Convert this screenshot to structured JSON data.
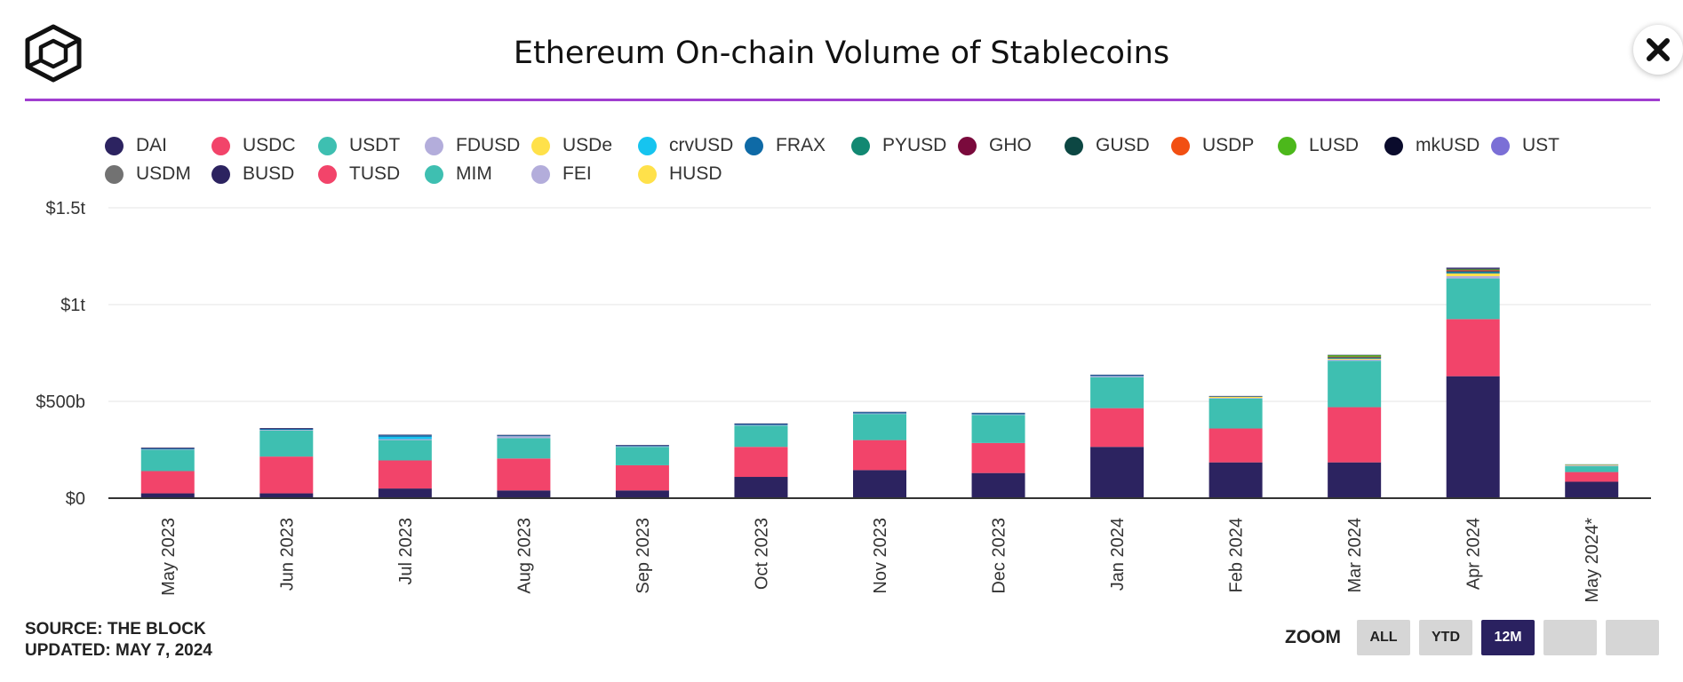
{
  "title": "Ethereum On-chain Volume of Stablecoins",
  "legend": [
    {
      "name": "DAI",
      "color": "#2c2360"
    },
    {
      "name": "USDC",
      "color": "#f2446a"
    },
    {
      "name": "USDT",
      "color": "#3ebfb1"
    },
    {
      "name": "FDUSD",
      "color": "#b3addb"
    },
    {
      "name": "USDe",
      "color": "#ffe14a"
    },
    {
      "name": "crvUSD",
      "color": "#16c4ef"
    },
    {
      "name": "FRAX",
      "color": "#0e6aa6"
    },
    {
      "name": "PYUSD",
      "color": "#128872"
    },
    {
      "name": "GHO",
      "color": "#7a0a3c"
    },
    {
      "name": "GUSD",
      "color": "#0c4743"
    },
    {
      "name": "USDP",
      "color": "#f24f12"
    },
    {
      "name": "LUSD",
      "color": "#4cb81b"
    },
    {
      "name": "mkUSD",
      "color": "#0a0b2c"
    },
    {
      "name": "UST",
      "color": "#7b6fd6"
    },
    {
      "name": "USDM",
      "color": "#727272"
    },
    {
      "name": "BUSD",
      "color": "#2c2360"
    },
    {
      "name": "TUSD",
      "color": "#f2446a"
    },
    {
      "name": "MIM",
      "color": "#3ebfb1"
    },
    {
      "name": "FEI",
      "color": "#b3addb"
    },
    {
      "name": "HUSD",
      "color": "#ffe14a"
    }
  ],
  "chart_data": {
    "type": "bar",
    "stacked": true,
    "categories": [
      "May 2023",
      "Jun 2023",
      "Jul 2023",
      "Aug 2023",
      "Sep 2023",
      "Oct 2023",
      "Nov 2023",
      "Dec 2023",
      "Jan 2024",
      "Feb 2024",
      "Mar 2024",
      "Apr 2024",
      "May 2024*"
    ],
    "y_ticks": [
      "$0",
      "$500b",
      "$1t",
      "$1.5t"
    ],
    "ylim": [
      0,
      1500
    ],
    "grid": true,
    "legend_position": "top",
    "series": [
      {
        "name": "DAI",
        "color": "#2c2360",
        "values": [
          25,
          25,
          50,
          40,
          40,
          110,
          145,
          130,
          265,
          185,
          185,
          630,
          85
        ]
      },
      {
        "name": "USDC",
        "color": "#f2446a",
        "values": [
          115,
          190,
          145,
          165,
          130,
          155,
          155,
          155,
          200,
          175,
          285,
          295,
          50
        ]
      },
      {
        "name": "USDT",
        "color": "#3ebfb1",
        "values": [
          110,
          135,
          105,
          105,
          95,
          110,
          135,
          145,
          160,
          155,
          240,
          210,
          30
        ]
      },
      {
        "name": "FDUSD",
        "color": "#b3addb",
        "values": [
          3,
          3,
          5,
          10,
          3,
          3,
          3,
          3,
          6,
          3,
          6,
          12,
          4
        ]
      },
      {
        "name": "USDe",
        "color": "#ffe14a",
        "values": [
          0,
          0,
          0,
          0,
          0,
          0,
          0,
          0,
          0,
          6,
          4,
          14,
          5
        ]
      },
      {
        "name": "crvUSD",
        "color": "#16c4ef",
        "values": [
          0,
          0,
          12,
          0,
          0,
          0,
          0,
          0,
          0,
          0,
          0,
          0,
          0
        ]
      },
      {
        "name": "FRAX",
        "color": "#0e6aa6",
        "values": [
          4,
          5,
          8,
          4,
          4,
          5,
          6,
          6,
          5,
          3,
          3,
          6,
          1
        ]
      },
      {
        "name": "PYUSD",
        "color": "#128872",
        "values": [
          0,
          0,
          0,
          0,
          0,
          0,
          0,
          0,
          0,
          0,
          3,
          3,
          0
        ]
      },
      {
        "name": "GHO",
        "color": "#7a0a3c",
        "values": [
          0,
          0,
          0,
          0,
          0,
          0,
          0,
          0,
          0,
          0,
          2,
          3,
          0
        ]
      },
      {
        "name": "GUSD",
        "color": "#0c4743",
        "values": [
          0,
          0,
          0,
          0,
          0,
          0,
          0,
          0,
          0,
          0,
          2,
          3,
          0
        ]
      },
      {
        "name": "USDP",
        "color": "#f24f12",
        "values": [
          0,
          0,
          0,
          0,
          0,
          0,
          0,
          0,
          0,
          0,
          1,
          3,
          0
        ]
      },
      {
        "name": "LUSD",
        "color": "#4cb81b",
        "values": [
          0,
          0,
          0,
          0,
          0,
          0,
          0,
          0,
          0,
          0,
          8,
          3,
          0
        ]
      },
      {
        "name": "mkUSD",
        "color": "#0a0b2c",
        "values": [
          0,
          0,
          0,
          0,
          0,
          0,
          0,
          0,
          0,
          0,
          0,
          5,
          0
        ]
      },
      {
        "name": "UST",
        "color": "#7b6fd6",
        "values": [
          0,
          0,
          0,
          0,
          0,
          0,
          0,
          0,
          0,
          0,
          0,
          3,
          0
        ]
      },
      {
        "name": "USDM",
        "color": "#727272",
        "values": [
          0,
          0,
          0,
          0,
          0,
          0,
          0,
          0,
          0,
          0,
          0,
          0,
          0
        ]
      },
      {
        "name": "BUSD",
        "color": "#2c2360",
        "values": [
          4,
          4,
          3,
          3,
          3,
          3,
          2,
          2,
          2,
          1,
          1,
          1,
          0
        ]
      },
      {
        "name": "TUSD",
        "color": "#f2446a",
        "values": [
          0,
          0,
          0,
          0,
          0,
          0,
          0,
          0,
          0,
          0,
          0,
          0,
          0
        ]
      },
      {
        "name": "MIM",
        "color": "#3ebfb1",
        "values": [
          0,
          0,
          0,
          0,
          0,
          0,
          0,
          0,
          0,
          0,
          0,
          0,
          0
        ]
      },
      {
        "name": "FEI",
        "color": "#b3addb",
        "values": [
          0,
          0,
          0,
          0,
          0,
          0,
          0,
          0,
          0,
          0,
          0,
          0,
          0
        ]
      },
      {
        "name": "HUSD",
        "color": "#ffe14a",
        "values": [
          0,
          0,
          0,
          0,
          0,
          0,
          0,
          0,
          0,
          0,
          0,
          0,
          0
        ]
      }
    ]
  },
  "footer": {
    "source": "SOURCE: THE BLOCK",
    "updated": "UPDATED: MAY 7, 2024"
  },
  "zoom": {
    "label": "ZOOM",
    "buttons": [
      {
        "label": "ALL",
        "active": false
      },
      {
        "label": "YTD",
        "active": false
      },
      {
        "label": "12M",
        "active": true
      },
      {
        "label": "",
        "active": false
      },
      {
        "label": "",
        "active": false
      }
    ]
  },
  "icons": {
    "logo": "the-block-cube-logo",
    "close": "close-icon"
  }
}
